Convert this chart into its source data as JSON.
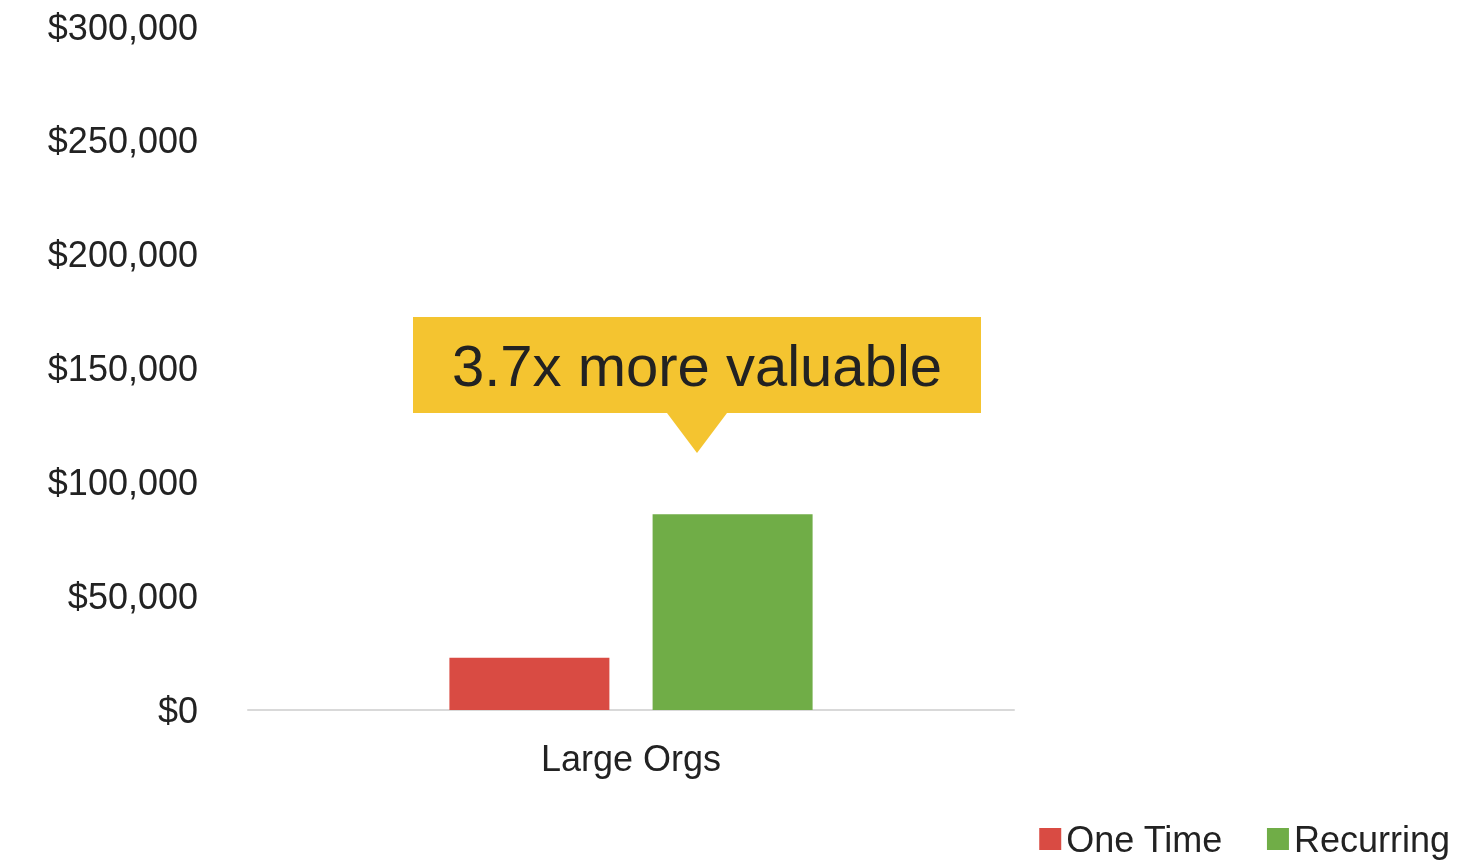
{
  "chart_data": {
    "type": "bar",
    "categories": [
      "Large Orgs"
    ],
    "series": [
      {
        "name": "One Time",
        "color": "#d94b43",
        "values": [
          23000
        ]
      },
      {
        "name": "Recurring",
        "color": "#70ad47",
        "values": [
          86000
        ]
      }
    ],
    "ylim": [
      0,
      300000
    ],
    "yticks": [
      {
        "value": 0,
        "label": "$0"
      },
      {
        "value": 50000,
        "label": "$50,000"
      },
      {
        "value": 100000,
        "label": "$100,000"
      },
      {
        "value": 150000,
        "label": "$150,000"
      },
      {
        "value": 200000,
        "label": "$200,000"
      },
      {
        "value": 250000,
        "label": "$250,000"
      },
      {
        "value": 300000,
        "label": "$300,000"
      }
    ],
    "grid": false,
    "legend": "bottom right",
    "annotations": [
      "3.7x more valuable"
    ]
  }
}
